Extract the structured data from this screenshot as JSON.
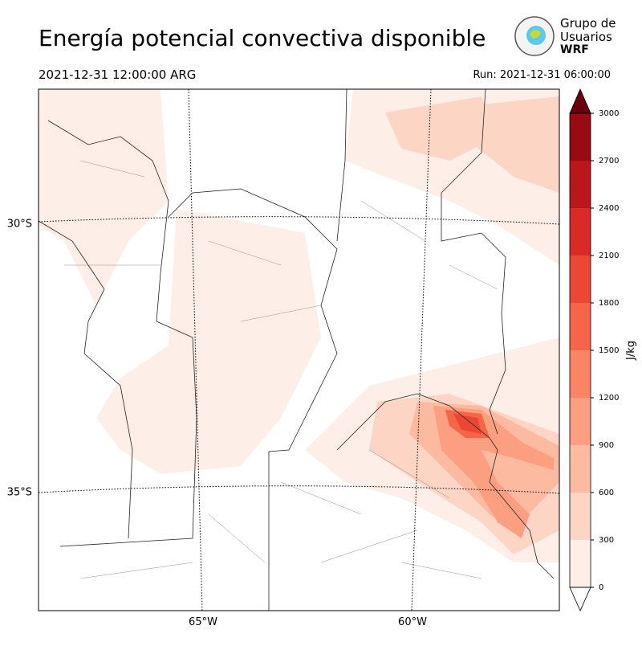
{
  "header": {
    "title": "Energía potencial convectiva disponible",
    "valid_time": "2021-12-31 12:00:00 ARG",
    "run": "Run: 2021-12-31 06:00:00"
  },
  "logo": {
    "lines": [
      "Grupo de",
      "Usuarios",
      "WRF"
    ]
  },
  "map": {
    "lat_labels": [
      "30°S",
      "35°S"
    ],
    "lon_labels": [
      "65°W",
      "60°W"
    ]
  },
  "colorbar": {
    "label": "J/kg",
    "lim": [
      0,
      3000
    ],
    "ticks": [
      0,
      300,
      600,
      900,
      1200,
      1500,
      1800,
      2100,
      2400,
      2700,
      3000
    ],
    "colors": [
      "#feeee8",
      "#fdd5c5",
      "#fcbba1",
      "#fc9f81",
      "#fb8464",
      "#f6644a",
      "#ec4735",
      "#d92a25",
      "#bb161b",
      "#990b13"
    ],
    "extend_color": "#67000d"
  }
}
